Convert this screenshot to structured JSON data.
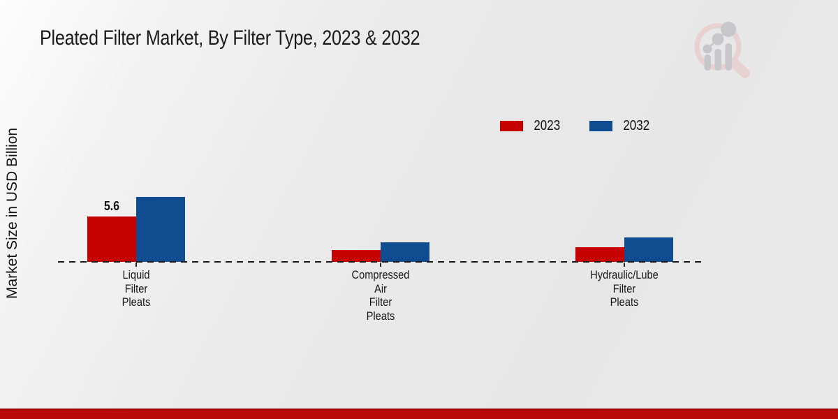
{
  "page": {
    "title": "Pleated Filter Market, By Filter Type, 2023 & 2032",
    "y_axis_label": "Market Size in USD Billion"
  },
  "branding": {
    "logo_icon": "magnifier-bar-chart-logo",
    "accent_bar_color": "#b90808"
  },
  "chart_data": {
    "type": "bar",
    "title": "Pleated Filter Market, By Filter Type, 2023 & 2032",
    "xlabel": "",
    "ylabel": "Market Size in USD Billion",
    "categories": [
      "Liquid\nFilter\nPleats",
      "Compressed\nAir\nFilter\nPleats",
      "Hydraulic/Lube\nFilter\nPleats"
    ],
    "series": [
      {
        "name": "2023",
        "color": "#c50101",
        "values": [
          5.6,
          1.5,
          1.8
        ]
      },
      {
        "name": "2032",
        "color": "#0f4c90",
        "values": [
          8.0,
          2.4,
          3.0
        ]
      }
    ],
    "annotations": [
      {
        "text": "5.6",
        "series_index": 0,
        "category_index": 0
      }
    ],
    "ylim": [
      0,
      10
    ],
    "grid": false,
    "legend_position": "upper-right",
    "zero_line_style": "dashed"
  }
}
